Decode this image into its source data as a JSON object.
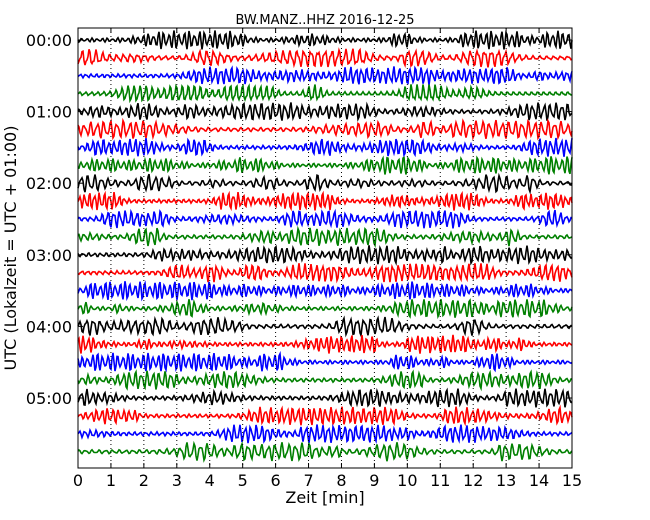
{
  "chart_data": {
    "type": "line",
    "title": "BW.MANZ..HHZ 2016-12-25",
    "xlabel": "Zeit  [min]",
    "ylabel": "UTC (Lokalzeit = UTC + 01:00)",
    "xlim": [
      0,
      15
    ],
    "x_ticks": [
      "0",
      "1",
      "2",
      "3",
      "4",
      "5",
      "6",
      "7",
      "8",
      "9",
      "10",
      "11",
      "12",
      "13",
      "14",
      "15"
    ],
    "y_ticks": [
      "00:00",
      "01:00",
      "02:00",
      "03:00",
      "04:00",
      "05:00"
    ],
    "traces_per_hour": 4,
    "trace_count": 24,
    "trace_interval_min": 15,
    "line_colors": [
      "#000000",
      "#ff0000",
      "#0000ff",
      "#008000"
    ],
    "grid": "vertical dotted at each minute"
  }
}
